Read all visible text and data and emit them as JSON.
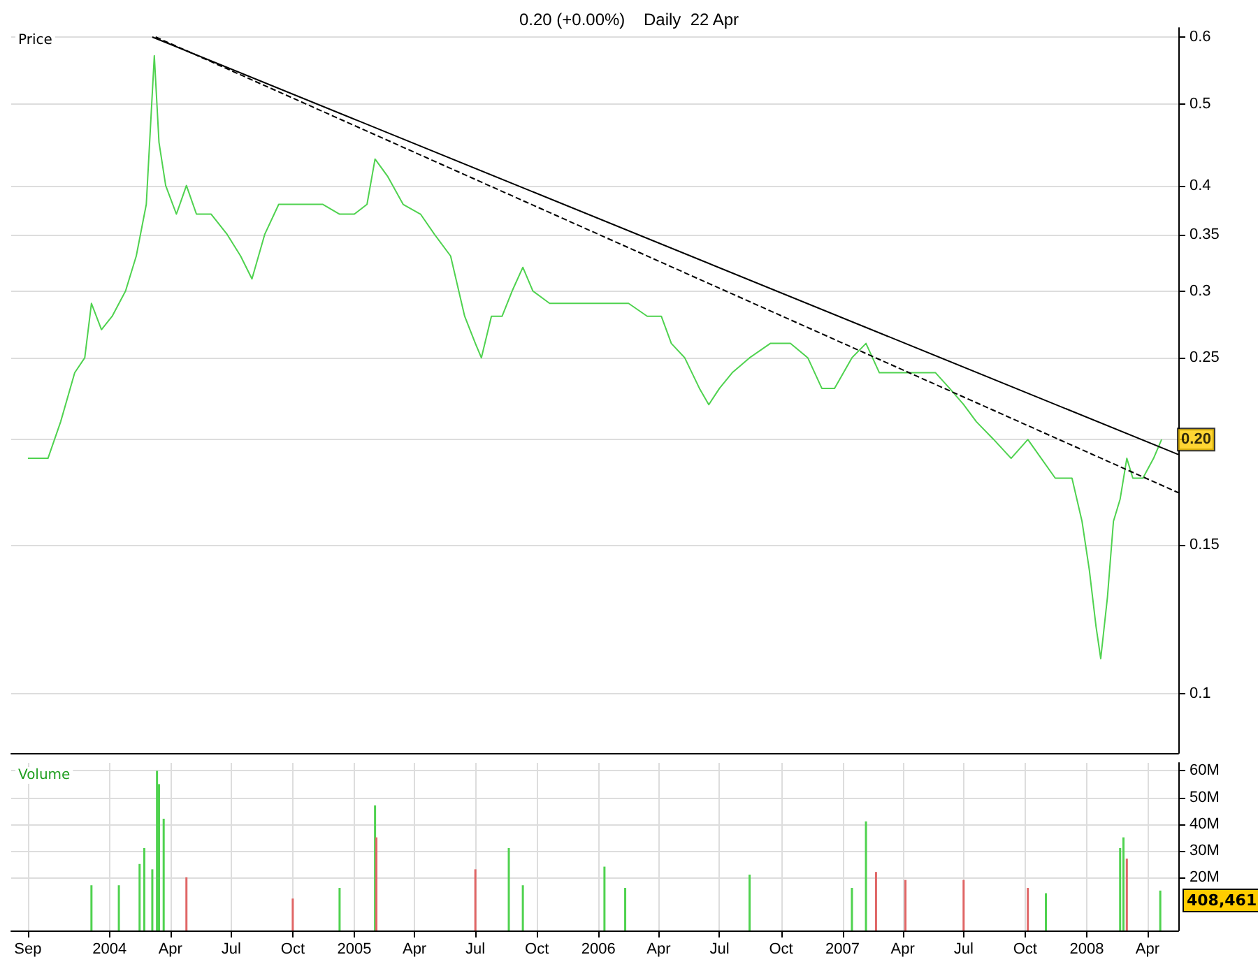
{
  "chart_data": [
    {
      "type": "line",
      "title": "0.20 (+0.00%)    Daily  22 Apr",
      "ylabel": "Price",
      "log": "y",
      "grid": true,
      "tick_labels": "y",
      "marker": "none",
      "xlim": [
        "2003-08-07",
        "2008-05-17"
      ],
      "ylim": [
        0.085,
        0.615
      ],
      "yticks": [
        0.1,
        0.15,
        {
          "value": 0.2,
          "label": null
        },
        0.25,
        0.3,
        0.35,
        0.4,
        0.5,
        0.6
      ],
      "annotations": [
        {
          "text": "0.20",
          "x": "2008-04-22",
          "y": 0.2
        }
      ],
      "series": [
        {
          "color": "#4fd24f",
          "line_style": "solid",
          "x": [
            "2003-09-01",
            "2003-10-01",
            "2003-10-20",
            "2003-11-10",
            "2003-11-25",
            "2003-12-05",
            "2003-12-20",
            "2004-01-05",
            "2004-01-25",
            "2004-02-10",
            "2004-02-25",
            "2004-03-08",
            "2004-03-15",
            "2004-03-25",
            "2004-04-10",
            "2004-04-25",
            "2004-05-10",
            "2004-06-01",
            "2004-06-25",
            "2004-07-15",
            "2004-08-01",
            "2004-08-20",
            "2004-09-10",
            "2004-10-15",
            "2004-11-15",
            "2004-12-10",
            "2005-01-01",
            "2005-01-20",
            "2005-02-01",
            "2005-02-20",
            "2005-03-15",
            "2005-04-10",
            "2005-05-01",
            "2005-05-25",
            "2005-06-15",
            "2005-07-01",
            "2005-07-10",
            "2005-07-25",
            "2005-08-10",
            "2005-08-25",
            "2005-09-10",
            "2005-09-25",
            "2005-10-20",
            "2005-11-20",
            "2005-12-20",
            "2006-01-15",
            "2006-02-15",
            "2006-03-15",
            "2006-04-05",
            "2006-04-20",
            "2006-05-10",
            "2006-06-01",
            "2006-06-15",
            "2006-07-01",
            "2006-07-20",
            "2006-08-15",
            "2006-09-15",
            "2006-10-15",
            "2006-11-10",
            "2006-12-01",
            "2006-12-20",
            "2007-01-15",
            "2007-02-05",
            "2007-02-25",
            "2007-03-25",
            "2007-04-20",
            "2007-05-20",
            "2007-06-10",
            "2007-07-01",
            "2007-07-20",
            "2007-08-15",
            "2007-09-10",
            "2007-10-05",
            "2007-10-25",
            "2007-11-15",
            "2007-12-10",
            "2007-12-25",
            "2008-01-05",
            "2008-01-15",
            "2008-01-22",
            "2008-02-01",
            "2008-02-10",
            "2008-02-20",
            "2008-03-01",
            "2008-03-10",
            "2008-03-25",
            "2008-04-10",
            "2008-04-22"
          ],
          "values": [
            0.19,
            0.19,
            0.21,
            0.24,
            0.25,
            0.29,
            0.27,
            0.28,
            0.3,
            0.33,
            0.38,
            0.57,
            0.45,
            0.4,
            0.37,
            0.4,
            0.37,
            0.37,
            0.35,
            0.33,
            0.31,
            0.35,
            0.38,
            0.38,
            0.38,
            0.37,
            0.37,
            0.38,
            0.43,
            0.41,
            0.38,
            0.37,
            0.35,
            0.33,
            0.28,
            0.26,
            0.25,
            0.28,
            0.28,
            0.3,
            0.32,
            0.3,
            0.29,
            0.29,
            0.29,
            0.29,
            0.29,
            0.28,
            0.28,
            0.26,
            0.25,
            0.23,
            0.22,
            0.23,
            0.24,
            0.25,
            0.26,
            0.26,
            0.25,
            0.23,
            0.23,
            0.25,
            0.26,
            0.24,
            0.24,
            0.24,
            0.24,
            0.23,
            0.22,
            0.21,
            0.2,
            0.19,
            0.2,
            0.19,
            0.18,
            0.18,
            0.16,
            0.14,
            0.12,
            0.11,
            0.13,
            0.16,
            0.17,
            0.19,
            0.18,
            0.18,
            0.19,
            0.2
          ]
        },
        {
          "color": "#000000",
          "line_style": "solid",
          "x": [
            "2004-03-05",
            "2008-05-17"
          ],
          "values": [
            0.6,
            0.192
          ]
        },
        {
          "color": "#000000",
          "line_style": "dashed",
          "x": [
            "2004-03-10",
            "2008-05-17"
          ],
          "values": [
            0.6,
            0.173
          ]
        }
      ]
    },
    {
      "type": "bar",
      "ylabel": "Volume",
      "grid": true,
      "xlim": [
        "2003-08-07",
        "2008-05-17"
      ],
      "xticks": [
        {
          "value": "2003-09-01",
          "label": "Sep"
        },
        {
          "value": "2004-01-01",
          "label": "2004"
        },
        {
          "value": "2004-04-01",
          "label": "Apr"
        },
        {
          "value": "2004-07-01",
          "label": "Jul"
        },
        {
          "value": "2004-10-01",
          "label": "Oct"
        },
        {
          "value": "2005-01-01",
          "label": "2005"
        },
        {
          "value": "2005-04-01",
          "label": "Apr"
        },
        {
          "value": "2005-07-01",
          "label": "Jul"
        },
        {
          "value": "2005-10-01",
          "label": "Oct"
        },
        {
          "value": "2006-01-01",
          "label": "2006"
        },
        {
          "value": "2006-04-01",
          "label": "Apr"
        },
        {
          "value": "2006-07-01",
          "label": "Jul"
        },
        {
          "value": "2006-10-01",
          "label": "Oct"
        },
        {
          "value": "2007-01-01",
          "label": "2007"
        },
        {
          "value": "2007-04-01",
          "label": "Apr"
        },
        {
          "value": "2007-07-01",
          "label": "Jul"
        },
        {
          "value": "2007-10-01",
          "label": "Oct"
        },
        {
          "value": "2008-01-01",
          "label": "2008"
        },
        {
          "value": "2008-04-01",
          "label": "Apr"
        }
      ],
      "ylim": [
        0,
        63
      ],
      "yticks": [
        {
          "value": 20,
          "label": "20M"
        },
        {
          "value": 30,
          "label": "30M"
        },
        {
          "value": 40,
          "label": "40M"
        },
        {
          "value": 50,
          "label": "50M"
        },
        {
          "value": 60,
          "label": "60M"
        }
      ],
      "annotations": [
        "408,461"
      ],
      "x": [
        "2003-12-05",
        "2004-01-15",
        "2004-02-15",
        "2004-02-22",
        "2004-03-05",
        "2004-03-12",
        "2004-03-15",
        "2004-03-22",
        "2004-04-25",
        "2004-10-01",
        "2004-12-10",
        "2005-02-01",
        "2005-02-03",
        "2005-07-01",
        "2005-08-20",
        "2005-09-10",
        "2006-01-10",
        "2006-02-10",
        "2006-08-15",
        "2007-01-15",
        "2007-02-05",
        "2007-02-20",
        "2007-04-05",
        "2007-07-01",
        "2007-10-05",
        "2007-11-01",
        "2008-02-20",
        "2008-02-25",
        "2008-03-01",
        "2008-04-20"
      ],
      "values": [
        17,
        17,
        25,
        31,
        23,
        60,
        55,
        42,
        20,
        12,
        16,
        47,
        35,
        23,
        31,
        17,
        24,
        16,
        21,
        16,
        41,
        22,
        19,
        19,
        16,
        14,
        31,
        35,
        27,
        15
      ],
      "colors": [
        "#4fd24f",
        "#4fd24f",
        "#4fd24f",
        "#4fd24f",
        "#4fd24f",
        "#4fd24f",
        "#4fd24f",
        "#4fd24f",
        "#e06666",
        "#e06666",
        "#4fd24f",
        "#4fd24f",
        "#e06666",
        "#e06666",
        "#4fd24f",
        "#4fd24f",
        "#4fd24f",
        "#4fd24f",
        "#4fd24f",
        "#4fd24f",
        "#4fd24f",
        "#e06666",
        "#e06666",
        "#e06666",
        "#e06666",
        "#4fd24f",
        "#4fd24f",
        "#4fd24f",
        "#e06666",
        "#4fd24f"
      ]
    }
  ]
}
